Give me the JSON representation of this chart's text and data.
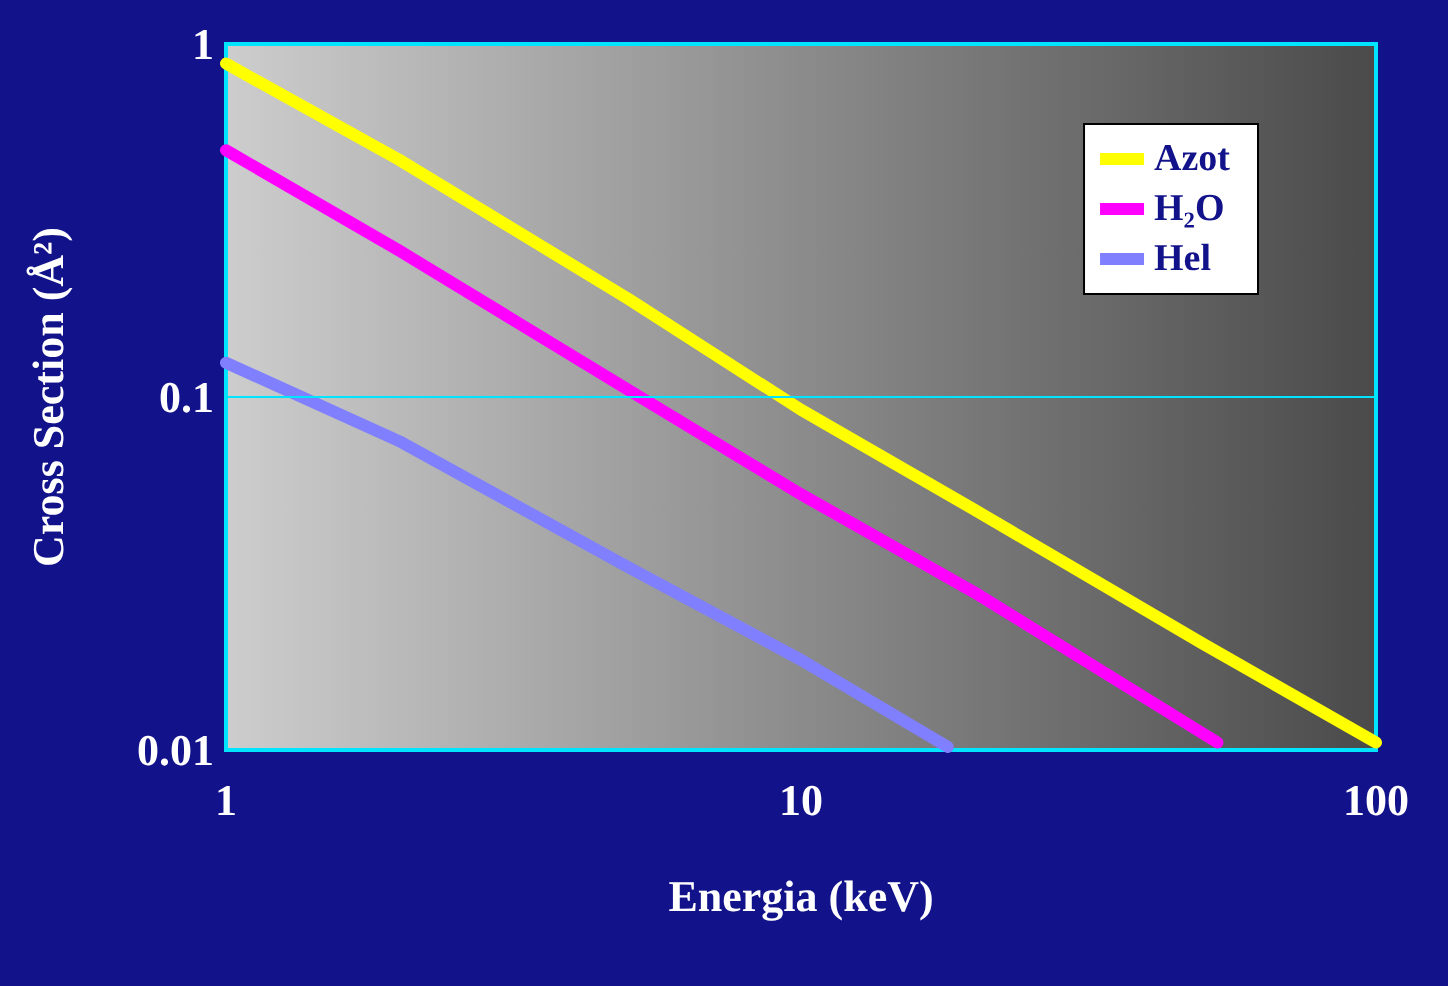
{
  "chart_data": {
    "type": "line",
    "xlabel": "Energia (keV)",
    "ylabel": "Cross Section (Å²)",
    "log": "xy",
    "xlim": [
      1,
      100
    ],
    "xticks": [
      1,
      10,
      100
    ],
    "ylim": [
      0.01,
      1
    ],
    "yticks": [
      0.01,
      0.1,
      1
    ],
    "ref_lines": [
      {
        "axis": "y",
        "value": 0.1,
        "color": "#00e5ff",
        "line_style": "solid"
      }
    ],
    "legend": "top right",
    "marker": "none",
    "line_style": "solid",
    "series": [
      {
        "name": "Azot",
        "color": "#ffff00",
        "x": [
          1,
          2,
          5,
          10,
          20,
          50,
          100
        ],
        "values": [
          0.88,
          0.47,
          0.19,
          0.092,
          0.048,
          0.02,
          0.0105
        ]
      },
      {
        "name": "H₂O",
        "color": "#ff00ff",
        "x": [
          1,
          2,
          5,
          10,
          20,
          53
        ],
        "values": [
          0.5,
          0.26,
          0.105,
          0.053,
          0.028,
          0.0105
        ]
      },
      {
        "name": "Hel",
        "color": "#8080ff",
        "x": [
          1,
          2,
          5,
          10,
          18
        ],
        "values": [
          0.125,
          0.075,
          0.033,
          0.018,
          0.0102
        ]
      }
    ]
  }
}
